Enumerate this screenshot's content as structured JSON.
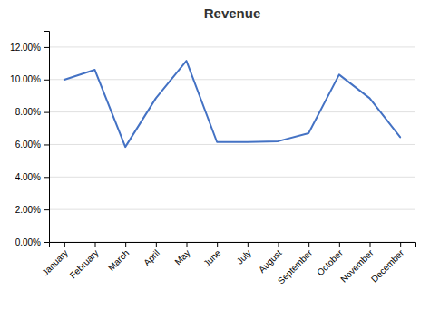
{
  "chart_data": {
    "type": "line",
    "title": "Revenue",
    "categories": [
      "January",
      "February",
      "March",
      "April",
      "May",
      "June",
      "July",
      "August",
      "September",
      "October",
      "November",
      "December"
    ],
    "values": [
      0.0999,
      0.106,
      0.0585,
      0.0885,
      0.1115,
      0.0615,
      0.0615,
      0.062,
      0.067,
      0.103,
      0.0885,
      0.0645
    ],
    "color": "#4472C4",
    "ylim": [
      0,
      0.13
    ],
    "yticks": [
      {
        "value": 0.0,
        "label": "0.00%"
      },
      {
        "value": 0.02,
        "label": "2.00%"
      },
      {
        "value": 0.04,
        "label": "4.00%"
      },
      {
        "value": 0.06,
        "label": "6.00%"
      },
      {
        "value": 0.08,
        "label": "8.00%"
      },
      {
        "value": 0.1,
        "label": "10.00%"
      },
      {
        "value": 0.12,
        "label": "12.00%"
      }
    ],
    "grid": true
  }
}
